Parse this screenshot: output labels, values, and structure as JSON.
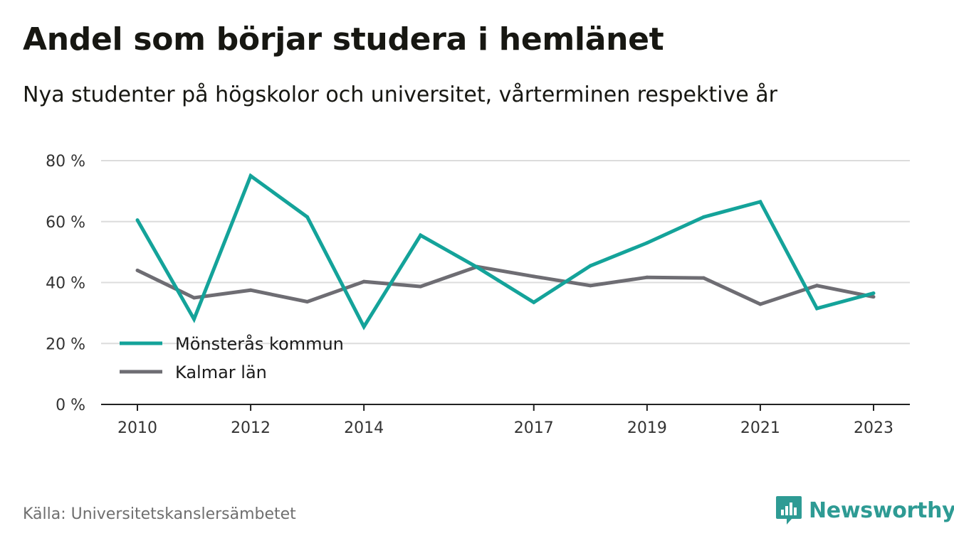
{
  "header": {
    "title": "Andel som börjar studera i hemlänet",
    "subtitle": "Nya studenter på högskolor och universitet, vårterminen respektive år"
  },
  "footer": {
    "source": "Källa: Universitetskanslersämbetet",
    "brand": "Newsworthy",
    "brand_icon": "newsworthy-logo-icon"
  },
  "colors": {
    "series_1": "#14a39a",
    "series_2": "#6e6d73",
    "grid": "#dcdcdc",
    "axis": "#222222",
    "brand": "#2e9b94"
  },
  "chart_data": {
    "type": "line",
    "x": [
      2010,
      2011,
      2012,
      2013,
      2014,
      2015,
      2016,
      2017,
      2018,
      2019,
      2020,
      2021,
      2022,
      2023
    ],
    "x_ticks": [
      2010,
      2012,
      2014,
      2017,
      2019,
      2021,
      2023
    ],
    "y_ticks": [
      0,
      20,
      40,
      60,
      80
    ],
    "y_tick_labels": [
      "0 %",
      "20 %",
      "40 %",
      "60 %",
      "80 %"
    ],
    "ylim": [
      0,
      80
    ],
    "grid": true,
    "legend_position": "bottom-left",
    "series": [
      {
        "name": "Mönsterås kommun",
        "color": "#14a39a",
        "values": [
          60.5,
          28.0,
          75.0,
          61.5,
          25.5,
          55.5,
          45.0,
          33.5,
          45.5,
          53.0,
          61.5,
          66.5,
          31.5,
          36.5
        ]
      },
      {
        "name": "Kalmar län",
        "color": "#6e6d73",
        "values": [
          44.0,
          35.0,
          37.5,
          33.7,
          40.3,
          38.7,
          45.2,
          42.0,
          39.0,
          41.7,
          41.5,
          32.9,
          39.0,
          35.3
        ]
      }
    ]
  }
}
